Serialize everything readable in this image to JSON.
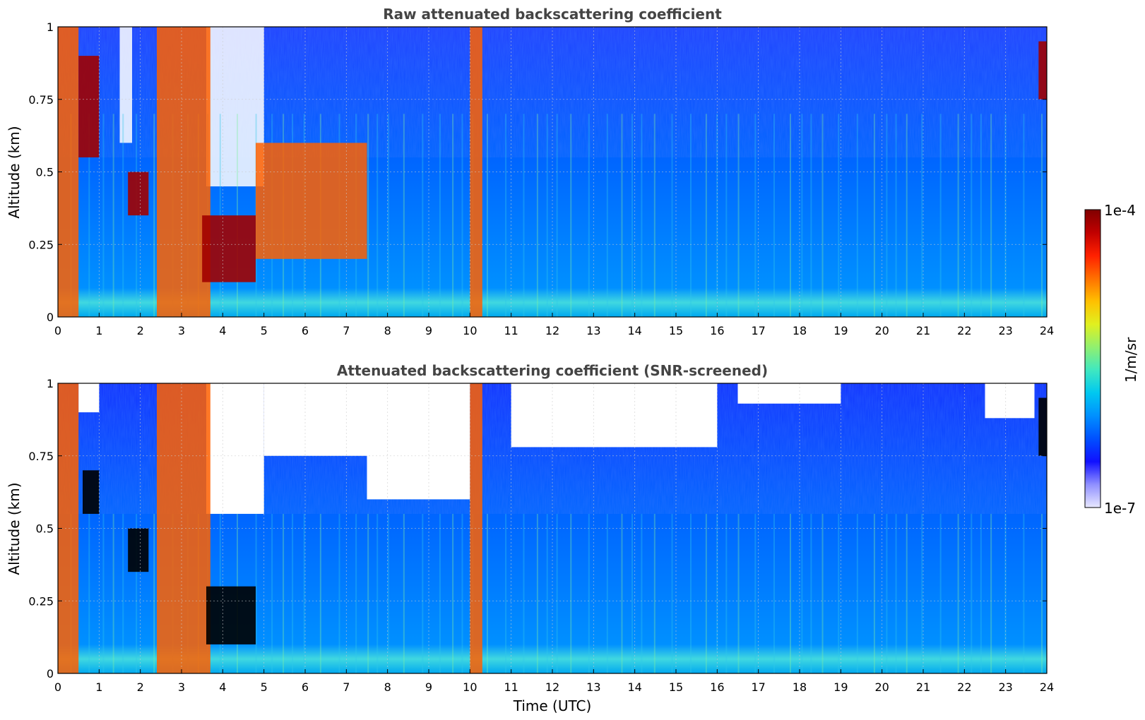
{
  "chart_data": [
    {
      "type": "heatmap",
      "title": "Raw attenuated backscattering coefficient",
      "xlabel": "",
      "ylabel": "Altitude (km)",
      "xlim": [
        0,
        24
      ],
      "ylim": [
        0,
        1
      ],
      "xticks": [
        "0",
        "1",
        "2",
        "3",
        "4",
        "5",
        "6",
        "7",
        "8",
        "9",
        "10",
        "11",
        "12",
        "13",
        "14",
        "15",
        "16",
        "17",
        "18",
        "19",
        "20",
        "21",
        "22",
        "23",
        "24"
      ],
      "yticks": [
        "0",
        "0.25",
        "0.5",
        "0.75",
        "1"
      ],
      "grid": true,
      "screened": false,
      "regions": [
        {
          "x": [
            0.0,
            0.5
          ],
          "y": [
            0,
            1
          ],
          "level": "high"
        },
        {
          "x": [
            0.5,
            1.0
          ],
          "y": [
            0.55,
            0.9
          ],
          "level": "very high"
        },
        {
          "x": [
            1.7,
            2.2
          ],
          "y": [
            0.35,
            0.5
          ],
          "level": "very high"
        },
        {
          "x": [
            2.4,
            3.7
          ],
          "y": [
            0,
            1
          ],
          "level": "high"
        },
        {
          "x": [
            3.5,
            4.8
          ],
          "y": [
            0.12,
            0.35
          ],
          "level": "very high"
        },
        {
          "x": [
            4.8,
            7.5
          ],
          "y": [
            0.2,
            0.6
          ],
          "level": "high"
        },
        {
          "x": [
            10.0,
            10.3
          ],
          "y": [
            0,
            1
          ],
          "level": "high"
        },
        {
          "x": [
            23.8,
            24.0
          ],
          "y": [
            0.75,
            0.95
          ],
          "level": "very high"
        }
      ]
    },
    {
      "type": "heatmap",
      "title": "Attenuated backscattering coefficient (SNR-screened)",
      "xlabel": "Time (UTC)",
      "ylabel": "Altitude (km)",
      "xlim": [
        0,
        24
      ],
      "ylim": [
        0,
        1
      ],
      "xticks": [
        "0",
        "1",
        "2",
        "3",
        "4",
        "5",
        "6",
        "7",
        "8",
        "9",
        "10",
        "11",
        "12",
        "13",
        "14",
        "15",
        "16",
        "17",
        "18",
        "19",
        "20",
        "21",
        "22",
        "23",
        "24"
      ],
      "yticks": [
        "0",
        "0.25",
        "0.5",
        "0.75",
        "1"
      ],
      "grid": true,
      "screened": true,
      "regions": [
        {
          "x": [
            0.0,
            0.5
          ],
          "y": [
            0,
            1
          ],
          "level": "high"
        },
        {
          "x": [
            0.6,
            1.0
          ],
          "y": [
            0.55,
            0.7
          ],
          "level": "saturated"
        },
        {
          "x": [
            1.7,
            2.2
          ],
          "y": [
            0.35,
            0.5
          ],
          "level": "saturated"
        },
        {
          "x": [
            2.4,
            3.7
          ],
          "y": [
            0,
            1
          ],
          "level": "high"
        },
        {
          "x": [
            3.6,
            4.8
          ],
          "y": [
            0.1,
            0.3
          ],
          "level": "saturated"
        },
        {
          "x": [
            10.0,
            10.3
          ],
          "y": [
            0,
            1
          ],
          "level": "high"
        },
        {
          "x": [
            23.8,
            24.0
          ],
          "y": [
            0.75,
            0.95
          ],
          "level": "saturated"
        }
      ]
    }
  ],
  "colorbar": {
    "label": "1/m/sr",
    "max_label": "1e-4",
    "min_label": "1e-7",
    "colors": [
      "#e8e8ff",
      "#9090ff",
      "#1010ff",
      "#0050ff",
      "#0090ff",
      "#00c8f0",
      "#40e8c0",
      "#90f070",
      "#e0f020",
      "#ffc000",
      "#ff7000",
      "#ff2000",
      "#c00000",
      "#800000"
    ]
  }
}
